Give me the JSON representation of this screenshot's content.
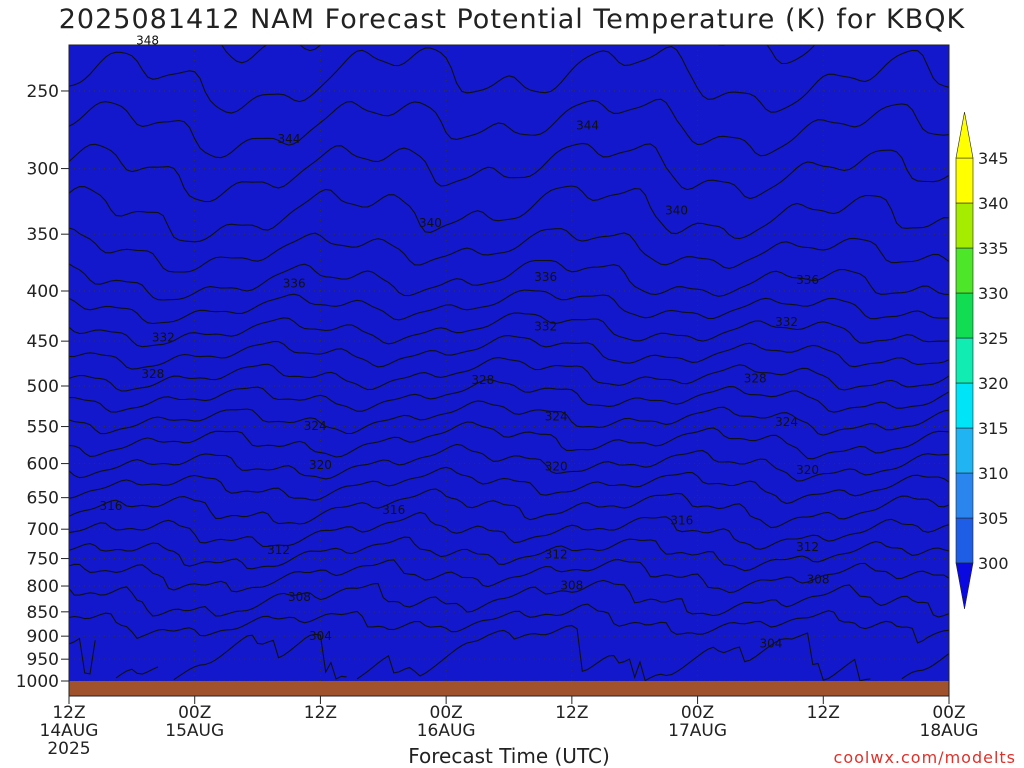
{
  "chart_data": {
    "type": "heatmap",
    "title": "2025081412 NAM Forecast Potential Temperature (K) for KBQK",
    "xlabel": "Forecast Time (UTC)",
    "credit": "coolwx.com/modelts",
    "y_axis": {
      "reversed": true,
      "range": [
        1000,
        200
      ],
      "ticks": [
        250,
        300,
        350,
        400,
        450,
        500,
        550,
        600,
        650,
        700,
        750,
        800,
        850,
        900,
        950,
        1000
      ]
    },
    "x_axis": {
      "range_hours": [
        0,
        84
      ],
      "ticks": [
        {
          "hour": 0,
          "line1": "12Z",
          "line2": "14AUG",
          "line3": "2025"
        },
        {
          "hour": 12,
          "line1": "00Z",
          "line2": "15AUG",
          "line3": ""
        },
        {
          "hour": 24,
          "line1": "12Z",
          "line2": "",
          "line3": ""
        },
        {
          "hour": 36,
          "line1": "00Z",
          "line2": "16AUG",
          "line3": ""
        },
        {
          "hour": 48,
          "line1": "12Z",
          "line2": "",
          "line3": ""
        },
        {
          "hour": 60,
          "line1": "00Z",
          "line2": "17AUG",
          "line3": ""
        },
        {
          "hour": 72,
          "line1": "12Z",
          "line2": "",
          "line3": ""
        },
        {
          "hour": 84,
          "line1": "00Z",
          "line2": "18AUG",
          "line3": ""
        }
      ]
    },
    "grid": true,
    "colorbar": {
      "levels": [
        300,
        305,
        310,
        315,
        320,
        325,
        330,
        335,
        340,
        345
      ],
      "colors": [
        "#1418cc",
        "#1e5ee6",
        "#2a86ee",
        "#20b4f2",
        "#00e4f8",
        "#10ecb2",
        "#12dc52",
        "#4ee628",
        "#a6ec00",
        "#ffff00",
        "#ffff00"
      ],
      "extend_low_color": "#0a0ae0",
      "extend_high_color": "#ffff00"
    },
    "theta_profile": [
      {
        "p": 1000,
        "theta": 303.0
      },
      {
        "p": 950,
        "theta": 303.8
      },
      {
        "p": 900,
        "theta": 304.6
      },
      {
        "p": 850,
        "theta": 307.0
      },
      {
        "p": 800,
        "theta": 309.0
      },
      {
        "p": 750,
        "theta": 311.5
      },
      {
        "p": 700,
        "theta": 314.2
      },
      {
        "p": 650,
        "theta": 316.8
      },
      {
        "p": 600,
        "theta": 320.0
      },
      {
        "p": 550,
        "theta": 323.2
      },
      {
        "p": 500,
        "theta": 327.0
      },
      {
        "p": 450,
        "theta": 331.0
      },
      {
        "p": 400,
        "theta": 335.3
      },
      {
        "p": 350,
        "theta": 339.0
      },
      {
        "p": 300,
        "theta": 342.0
      },
      {
        "p": 250,
        "theta": 345.5
      },
      {
        "p": 200,
        "theta": 349.0
      }
    ],
    "contour_levels": [
      304,
      306,
      308,
      310,
      312,
      314,
      316,
      318,
      320,
      322,
      324,
      326,
      328,
      330,
      332,
      334,
      336,
      338,
      340,
      342,
      344,
      346,
      348
    ],
    "contour_labels": [
      {
        "text": "348",
        "hour": 7.5,
        "p": 222
      },
      {
        "text": "344",
        "hour": 21,
        "p": 280
      },
      {
        "text": "344",
        "hour": 49.5,
        "p": 271
      },
      {
        "text": "340",
        "hour": 34.5,
        "p": 341
      },
      {
        "text": "340",
        "hour": 58,
        "p": 331
      },
      {
        "text": "336",
        "hour": 21.5,
        "p": 393
      },
      {
        "text": "336",
        "hour": 45.5,
        "p": 387
      },
      {
        "text": "336",
        "hour": 70.5,
        "p": 390
      },
      {
        "text": "332",
        "hour": 9,
        "p": 446
      },
      {
        "text": "332",
        "hour": 45.5,
        "p": 435
      },
      {
        "text": "332",
        "hour": 68.5,
        "p": 430
      },
      {
        "text": "328",
        "hour": 8,
        "p": 486
      },
      {
        "text": "328",
        "hour": 39.5,
        "p": 493
      },
      {
        "text": "328",
        "hour": 65.5,
        "p": 491
      },
      {
        "text": "324",
        "hour": 23.5,
        "p": 549
      },
      {
        "text": "324",
        "hour": 46.5,
        "p": 537
      },
      {
        "text": "324",
        "hour": 68.5,
        "p": 544
      },
      {
        "text": "320",
        "hour": 24,
        "p": 602
      },
      {
        "text": "320",
        "hour": 46.5,
        "p": 604
      },
      {
        "text": "320",
        "hour": 70.5,
        "p": 609
      },
      {
        "text": "316",
        "hour": 4,
        "p": 663
      },
      {
        "text": "316",
        "hour": 31,
        "p": 669
      },
      {
        "text": "316",
        "hour": 58.5,
        "p": 686
      },
      {
        "text": "312",
        "hour": 20,
        "p": 735
      },
      {
        "text": "312",
        "hour": 46.5,
        "p": 743
      },
      {
        "text": "312",
        "hour": 70.5,
        "p": 730
      },
      {
        "text": "308",
        "hour": 22,
        "p": 821
      },
      {
        "text": "308",
        "hour": 48,
        "p": 799
      },
      {
        "text": "308",
        "hour": 71.5,
        "p": 788
      },
      {
        "text": "304",
        "hour": 24,
        "p": 900
      },
      {
        "text": "304",
        "hour": 67,
        "p": 916
      }
    ],
    "terrain_color": "#a0522d"
  }
}
